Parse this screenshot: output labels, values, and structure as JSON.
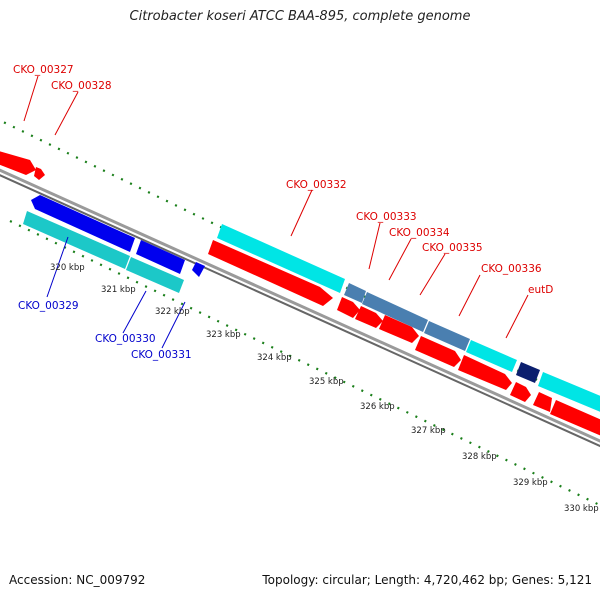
{
  "title": "Citrobacter koseri ATCC BAA-895, complete genome",
  "footer": {
    "accession": "Accession: NC_009792",
    "summary": "Topology: circular; Length: 4,720,462 bp; Genes: 5,121"
  },
  "colors": {
    "forward_gene": "#ff0000",
    "reverse_gene": "#0000ee",
    "cds_cyan": "#00e5e5",
    "cds_teal": "#1cc8c8",
    "cds_steel": "#4a7fb0",
    "cds_navy": "#0b1f6e",
    "backbone": "#9a9a9a",
    "tick": "#1a7f1a",
    "label_red": "#dd0000",
    "label_blue": "#0000cc"
  },
  "scale_labels": [
    "320 kbp",
    "321 kbp",
    "322 kbp",
    "323 kbp",
    "324 kbp",
    "325 kbp",
    "326 kbp",
    "327 kbp",
    "328 kbp",
    "329 kbp",
    "330 kbp"
  ],
  "gene_labels": {
    "cko_00327": "CKO_00327",
    "cko_00328": "CKO_00328",
    "cko_00329": "CKO_00329",
    "cko_00330": "CKO_00330",
    "cko_00331": "CKO_00331",
    "cko_00332": "CKO_00332",
    "cko_00333": "CKO_00333",
    "cko_00334": "CKO_00334",
    "cko_00335": "CKO_00335",
    "cko_00336": "CKO_00336",
    "eutd": "eutD"
  }
}
